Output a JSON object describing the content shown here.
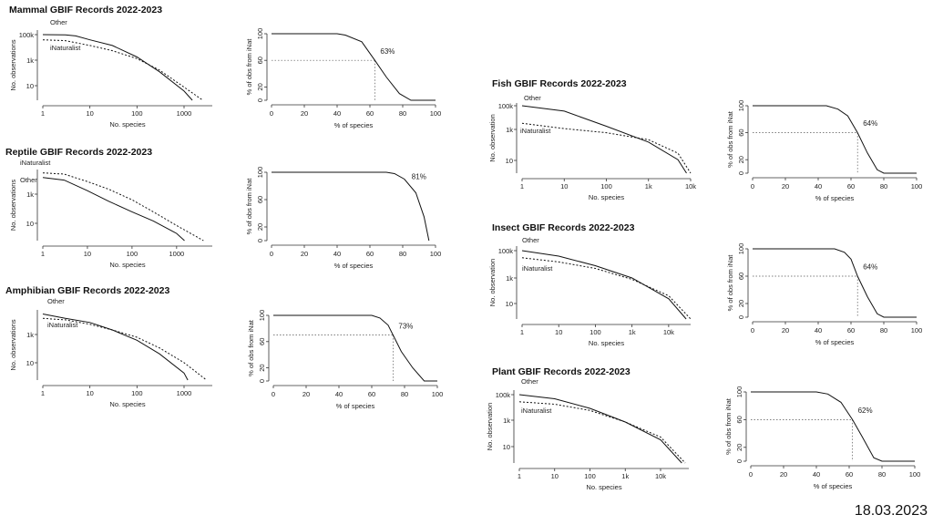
{
  "date": "18.03.2023",
  "chart_data": [
    {
      "type": "line",
      "title": "Mammal GBIF Records 2022-2023",
      "xlabel": "No. species",
      "ylabel": "No. observations",
      "scale": "log-log",
      "xticks": [
        "1",
        "10",
        "100",
        "1000"
      ],
      "yticks": [
        "100k",
        "1k",
        "10"
      ],
      "series": [
        {
          "name": "Other",
          "style": "solid",
          "points": [
            [
              1,
              100000
            ],
            [
              3,
              95000
            ],
            [
              5,
              80000
            ],
            [
              10,
              40000
            ],
            [
              30,
              15000
            ],
            [
              100,
              2000
            ],
            [
              300,
              150
            ],
            [
              1000,
              5
            ],
            [
              1500,
              1
            ]
          ]
        },
        {
          "name": "iNaturalist",
          "style": "dotted",
          "points": [
            [
              1,
              40000
            ],
            [
              3,
              35000
            ],
            [
              10,
              15000
            ],
            [
              30,
              6000
            ],
            [
              100,
              1500
            ],
            [
              300,
              200
            ],
            [
              1000,
              10
            ],
            [
              2500,
              1
            ]
          ]
        }
      ]
    },
    {
      "type": "line",
      "ylabel": "% of obs from iNat",
      "xlabel": "% of species",
      "xlim": [
        0,
        100
      ],
      "ylim": [
        0,
        100
      ],
      "xticks": [
        "0",
        "20",
        "40",
        "60",
        "80",
        "100"
      ],
      "yticks": [
        "100",
        "60",
        "20",
        "0"
      ],
      "annotation": "63%",
      "marker": [
        63,
        60
      ],
      "points": [
        [
          0,
          100
        ],
        [
          40,
          100
        ],
        [
          45,
          98
        ],
        [
          55,
          88
        ],
        [
          63,
          60
        ],
        [
          70,
          35
        ],
        [
          78,
          10
        ],
        [
          85,
          0
        ],
        [
          100,
          0
        ]
      ]
    },
    {
      "type": "line",
      "title": "Reptile GBIF Records 2022-2023",
      "xlabel": "No. species",
      "ylabel": "No. observations",
      "scale": "log-log",
      "xticks": [
        "1",
        "10",
        "100",
        "1000"
      ],
      "yticks": [
        "1k",
        "10"
      ],
      "series": [
        {
          "name": "iNaturalist",
          "style": "dotted",
          "points": [
            [
              1,
              30000
            ],
            [
              3,
              25000
            ],
            [
              10,
              8000
            ],
            [
              30,
              2500
            ],
            [
              100,
              500
            ],
            [
              300,
              80
            ],
            [
              1000,
              10
            ],
            [
              4000,
              1
            ]
          ]
        },
        {
          "name": "Other",
          "style": "solid",
          "points": [
            [
              1,
              15000
            ],
            [
              3,
              10000
            ],
            [
              10,
              2000
            ],
            [
              30,
              400
            ],
            [
              100,
              80
            ],
            [
              300,
              20
            ],
            [
              1000,
              3
            ],
            [
              1500,
              1
            ]
          ]
        }
      ]
    },
    {
      "type": "line",
      "ylabel": "% of obs from iNat",
      "xlabel": "% of species",
      "xlim": [
        0,
        100
      ],
      "ylim": [
        0,
        100
      ],
      "xticks": [
        "0",
        "20",
        "40",
        "60",
        "80",
        "100"
      ],
      "yticks": [
        "100",
        "60",
        "20",
        "0"
      ],
      "annotation": "81%",
      "points": [
        [
          0,
          100
        ],
        [
          70,
          100
        ],
        [
          75,
          98
        ],
        [
          81,
          90
        ],
        [
          88,
          70
        ],
        [
          93,
          35
        ],
        [
          96,
          0
        ]
      ]
    },
    {
      "type": "line",
      "title": "Amphibian GBIF Records 2022-2023",
      "xlabel": "No. species",
      "ylabel": "No. observations",
      "scale": "log-log",
      "xticks": [
        "1",
        "10",
        "100",
        "1000"
      ],
      "yticks": [
        "1k",
        "10"
      ],
      "series": [
        {
          "name": "Other",
          "style": "solid",
          "points": [
            [
              1,
              30000
            ],
            [
              3,
              15000
            ],
            [
              10,
              8000
            ],
            [
              30,
              2500
            ],
            [
              100,
              500
            ],
            [
              300,
              60
            ],
            [
              1000,
              3
            ],
            [
              1200,
              1
            ]
          ]
        },
        {
          "name": "iNaturalist",
          "style": "dotted",
          "points": [
            [
              1,
              15000
            ],
            [
              3,
              12000
            ],
            [
              10,
              6000
            ],
            [
              30,
              2500
            ],
            [
              100,
              800
            ],
            [
              300,
              150
            ],
            [
              1000,
              15
            ],
            [
              3000,
              1
            ]
          ]
        }
      ]
    },
    {
      "type": "line",
      "ylabel": "% of obs from iNat",
      "xlabel": "% of species",
      "xlim": [
        0,
        100
      ],
      "ylim": [
        0,
        100
      ],
      "xticks": [
        "0",
        "20",
        "40",
        "60",
        "80",
        "100"
      ],
      "yticks": [
        "100",
        "60",
        "20",
        "0"
      ],
      "annotation": "73%",
      "marker": [
        73,
        70
      ],
      "points": [
        [
          0,
          100
        ],
        [
          60,
          100
        ],
        [
          65,
          96
        ],
        [
          70,
          85
        ],
        [
          73,
          70
        ],
        [
          78,
          45
        ],
        [
          85,
          20
        ],
        [
          92,
          0
        ],
        [
          100,
          0
        ]
      ]
    },
    {
      "type": "line",
      "title": "Fish GBIF Records 2022-2023",
      "xlabel": "No. species",
      "ylabel": "No. observation",
      "scale": "log-log",
      "xticks": [
        "1",
        "10",
        "100",
        "1k",
        "10k"
      ],
      "yticks": [
        "100k",
        "1k",
        "10"
      ],
      "series": [
        {
          "name": "Other",
          "style": "solid",
          "points": [
            [
              1,
              100000
            ],
            [
              10,
              40000
            ],
            [
              100,
              3000
            ],
            [
              1000,
              200
            ],
            [
              5000,
              10
            ],
            [
              8000,
              1
            ]
          ]
        },
        {
          "name": "iNaturalist",
          "style": "dotted",
          "points": [
            [
              1,
              5000
            ],
            [
              10,
              2000
            ],
            [
              100,
              1000
            ],
            [
              1000,
              300
            ],
            [
              5000,
              30
            ],
            [
              10000,
              1
            ]
          ]
        }
      ]
    },
    {
      "type": "line",
      "ylabel": "% of obs from iNat",
      "xlabel": "% of species",
      "xlim": [
        0,
        100
      ],
      "ylim": [
        0,
        100
      ],
      "xticks": [
        "0",
        "20",
        "40",
        "60",
        "80",
        "100"
      ],
      "yticks": [
        "100",
        "60",
        "20",
        "0"
      ],
      "annotation": "64%",
      "marker": [
        64,
        60
      ],
      "points": [
        [
          0,
          100
        ],
        [
          45,
          100
        ],
        [
          52,
          95
        ],
        [
          58,
          85
        ],
        [
          64,
          60
        ],
        [
          70,
          30
        ],
        [
          76,
          5
        ],
        [
          80,
          0
        ],
        [
          100,
          0
        ]
      ]
    },
    {
      "type": "line",
      "title": "Insect GBIF Records 2022-2023",
      "xlabel": "No. species",
      "ylabel": "No. observation",
      "scale": "log-log",
      "xticks": [
        "1",
        "10",
        "100",
        "1k",
        "10k"
      ],
      "yticks": [
        "100k",
        "1k",
        "10"
      ],
      "series": [
        {
          "name": "Other",
          "style": "solid",
          "points": [
            [
              1,
              100000
            ],
            [
              10,
              40000
            ],
            [
              100,
              8000
            ],
            [
              1000,
              1000
            ],
            [
              10000,
              30
            ],
            [
              30000,
              1
            ]
          ]
        },
        {
          "name": "iNaturalist",
          "style": "dotted",
          "points": [
            [
              1,
              30000
            ],
            [
              10,
              15000
            ],
            [
              100,
              5000
            ],
            [
              1000,
              800
            ],
            [
              10000,
              50
            ],
            [
              40000,
              1
            ]
          ]
        }
      ]
    },
    {
      "type": "line",
      "ylabel": "% of obs from iNat",
      "xlabel": "% of species",
      "xlim": [
        0,
        100
      ],
      "ylim": [
        0,
        100
      ],
      "xticks": [
        "0",
        "20",
        "40",
        "60",
        "80",
        "100"
      ],
      "yticks": [
        "100",
        "60",
        "20",
        "0"
      ],
      "annotation": "64%",
      "marker": [
        64,
        60
      ],
      "points": [
        [
          0,
          100
        ],
        [
          50,
          100
        ],
        [
          56,
          95
        ],
        [
          60,
          85
        ],
        [
          64,
          60
        ],
        [
          70,
          30
        ],
        [
          76,
          5
        ],
        [
          80,
          0
        ],
        [
          100,
          0
        ]
      ]
    },
    {
      "type": "line",
      "title": "Plant GBIF Records 2022-2023",
      "xlabel": "No. species",
      "ylabel": "No. observation",
      "scale": "log-log",
      "xticks": [
        "1",
        "10",
        "100",
        "1k",
        "10k"
      ],
      "yticks": [
        "100k",
        "1k",
        "10"
      ],
      "series": [
        {
          "name": "Other",
          "style": "solid",
          "points": [
            [
              1,
              100000
            ],
            [
              10,
              50000
            ],
            [
              100,
              10000
            ],
            [
              1000,
              1000
            ],
            [
              10000,
              50
            ],
            [
              40000,
              1
            ]
          ]
        },
        {
          "name": "iNaturalist",
          "style": "dotted",
          "points": [
            [
              1,
              30000
            ],
            [
              10,
              20000
            ],
            [
              100,
              7000
            ],
            [
              1000,
              1000
            ],
            [
              10000,
              80
            ],
            [
              50000,
              1
            ]
          ]
        }
      ]
    },
    {
      "type": "line",
      "ylabel": "% of obs from iNat",
      "xlabel": "% of species",
      "xlim": [
        0,
        100
      ],
      "ylim": [
        0,
        100
      ],
      "xticks": [
        "0",
        "20",
        "40",
        "60",
        "80",
        "100"
      ],
      "yticks": [
        "100",
        "60",
        "20",
        "0"
      ],
      "annotation": "62%",
      "marker": [
        62,
        60
      ],
      "points": [
        [
          0,
          100
        ],
        [
          40,
          100
        ],
        [
          47,
          97
        ],
        [
          55,
          85
        ],
        [
          62,
          60
        ],
        [
          68,
          35
        ],
        [
          75,
          5
        ],
        [
          80,
          0
        ],
        [
          100,
          0
        ]
      ]
    }
  ]
}
